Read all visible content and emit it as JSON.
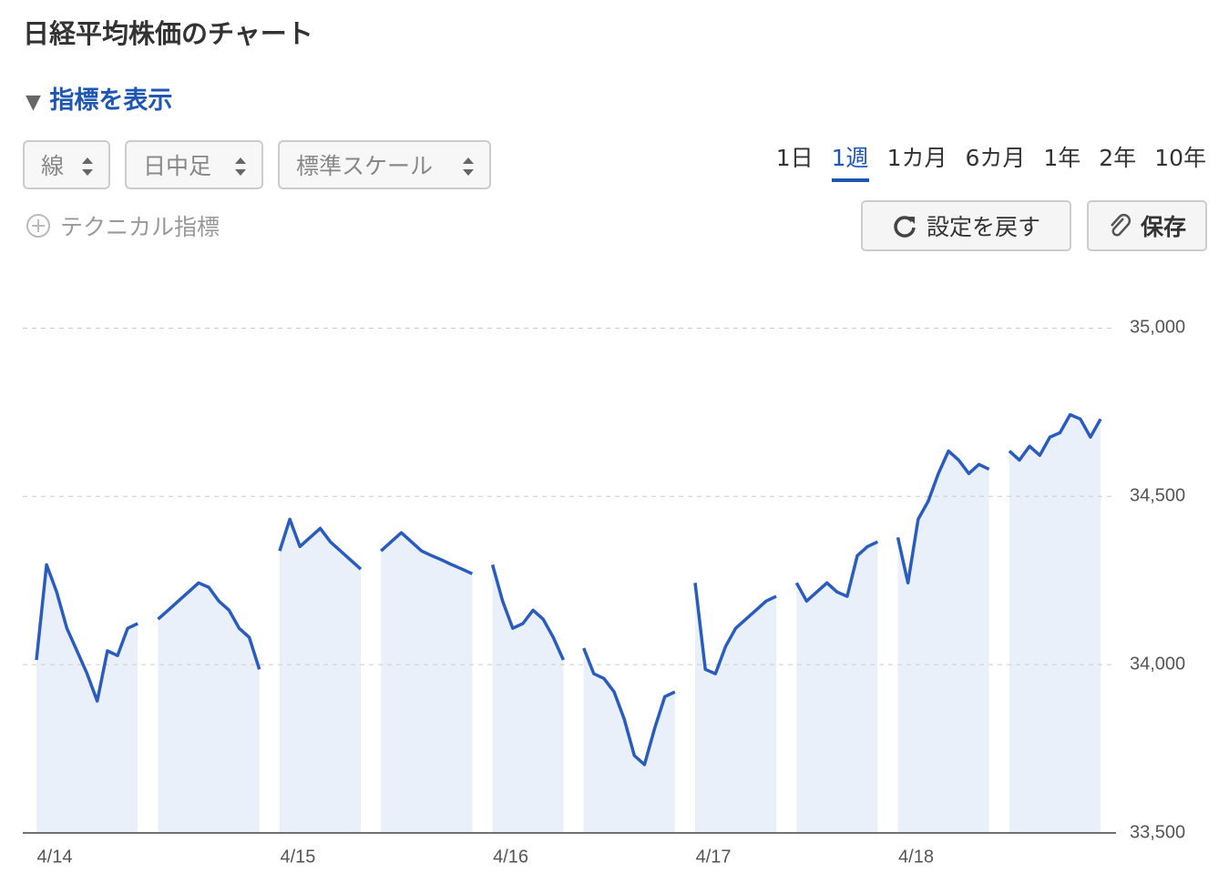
{
  "header": {
    "title": "日経平均株価のチャート",
    "indicator_toggle": "指標を表示"
  },
  "controls": {
    "selects": [
      "線",
      "日中足",
      "標準スケール"
    ],
    "periods": [
      "1日",
      "1週",
      "1カ月",
      "6カ月",
      "1年",
      "2年",
      "10年"
    ],
    "technical": "テクニカル指標",
    "reset": "設定を戻す",
    "save": "保存"
  },
  "chart_data": {
    "type": "line",
    "color": "#2a5cc0",
    "area_color": "#e9f0f9",
    "categories": [
      "4/14",
      null,
      null,
      null,
      null,
      null,
      null,
      null,
      null,
      null,
      null,
      null,
      null,
      null,
      null,
      null,
      null,
      null,
      null,
      null,
      null,
      null,
      null,
      null,
      "4/15",
      null,
      null,
      null,
      null,
      null,
      null,
      null,
      null,
      null,
      null,
      null,
      null,
      null,
      null,
      null,
      null,
      null,
      null,
      null,
      null,
      "4/16",
      null,
      null,
      null,
      null,
      null,
      null,
      null,
      null,
      null,
      null,
      null,
      null,
      null,
      null,
      null,
      null,
      null,
      null,
      null,
      "4/17",
      null,
      null,
      null,
      null,
      null,
      null,
      null,
      null,
      null,
      null,
      null,
      null,
      null,
      null,
      null,
      null,
      null,
      null,
      null,
      "4/18",
      null,
      null,
      null,
      null,
      null,
      null,
      null,
      null,
      null,
      null,
      null,
      null,
      null,
      null,
      null,
      null,
      null,
      null,
      null,
      null
    ],
    "values": [
      34014,
      34297,
      34216,
      34108,
      34041,
      33973,
      33892,
      34041,
      34027,
      34108,
      34122,
      null,
      34135,
      34162,
      34189,
      34216,
      34243,
      34230,
      34189,
      34162,
      34108,
      34081,
      33986,
      null,
      34338,
      34432,
      34351,
      34378,
      34405,
      34365,
      34338,
      34311,
      34284,
      null,
      34338,
      34365,
      34392,
      34365,
      34338,
      34324,
      34311,
      34297,
      34284,
      34270,
      null,
      34297,
      34189,
      34108,
      34122,
      34162,
      34135,
      34081,
      34014,
      null,
      34049,
      33973,
      33959,
      33919,
      33838,
      33730,
      33703,
      33811,
      33905,
      33919,
      null,
      34243,
      33986,
      33973,
      34054,
      34108,
      34135,
      34162,
      34189,
      34203,
      null,
      34243,
      34189,
      34216,
      34243,
      34216,
      34203,
      34324,
      34351,
      34365,
      null,
      34378,
      34243,
      34432,
      34486,
      34568,
      34635,
      34608,
      34568,
      34595,
      34581,
      null,
      34635,
      34608,
      34649,
      34622,
      34676,
      34689,
      34743,
      34730,
      34676,
      34730
    ],
    "ylim": [
      33500,
      35150
    ],
    "yticks": [
      {
        "value": 33500,
        "label": "33,500"
      },
      {
        "value": 34000,
        "label": "34,000"
      },
      {
        "value": 34500,
        "label": "34,500"
      },
      {
        "value": 35000,
        "label": "35,000"
      }
    ],
    "grid": true
  }
}
